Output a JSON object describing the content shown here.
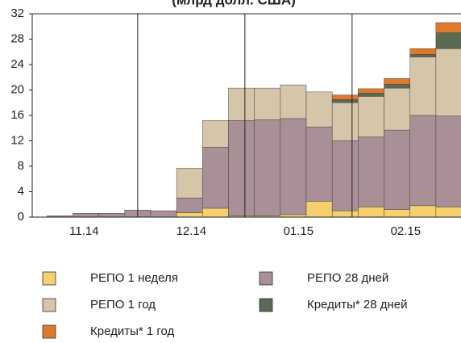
{
  "chart_data": {
    "type": "bar",
    "stacked": true,
    "title": "(млрд долл. США)",
    "x": [
      8,
      15.5,
      23,
      30.5,
      38,
      45.5,
      53,
      60.5,
      68,
      75.5,
      83,
      90.5,
      98,
      105.5,
      113,
      120.5
    ],
    "xlim": [
      0,
      124
    ],
    "xticks": [
      {
        "value": 15,
        "label": "11.14"
      },
      {
        "value": 46,
        "label": "12.14"
      },
      {
        "value": 77,
        "label": "01.15"
      },
      {
        "value": 108,
        "label": "02.15"
      }
    ],
    "xgrid": [
      30.5,
      61.5,
      92.5
    ],
    "ylim": [
      0,
      32
    ],
    "yticks": [
      0,
      4,
      8,
      12,
      16,
      20,
      24,
      28,
      32
    ],
    "series": [
      {
        "name": "РЕПО 1 неделя",
        "color": "#f5d06c",
        "values": [
          0,
          0,
          0,
          0,
          0,
          0.7,
          1.4,
          0.2,
          0.2,
          0.4,
          2.5,
          1.0,
          1.6,
          1.2,
          1.8,
          1.6
        ]
      },
      {
        "name": "РЕПО 28 дней",
        "color": "#a89096",
        "values": [
          0.2,
          0.6,
          0.6,
          1.1,
          1.0,
          2.3,
          9.6,
          15.0,
          15.1,
          15.1,
          11.7,
          11.0,
          11.0,
          12.5,
          14.2,
          14.3
        ]
      },
      {
        "name": "РЕПО 1 год",
        "color": "#d5c6aa",
        "values": [
          0,
          0,
          0,
          0,
          0,
          4.7,
          4.2,
          5.1,
          5.0,
          5.3,
          5.5,
          6.0,
          6.4,
          6.6,
          9.2,
          10.6
        ]
      },
      {
        "name": "Кредиты* 28 дней",
        "color": "#5b6a52",
        "values": [
          0,
          0,
          0,
          0,
          0,
          0,
          0,
          0,
          0,
          0,
          0,
          0.5,
          0.5,
          0.6,
          0.4,
          2.5
        ]
      },
      {
        "name": "Кредиты* 1 год",
        "color": "#e07a2a",
        "values": [
          0,
          0,
          0,
          0,
          0,
          0,
          0,
          0,
          0,
          0,
          0,
          0.7,
          0.7,
          0.9,
          0.9,
          1.6
        ]
      }
    ]
  }
}
